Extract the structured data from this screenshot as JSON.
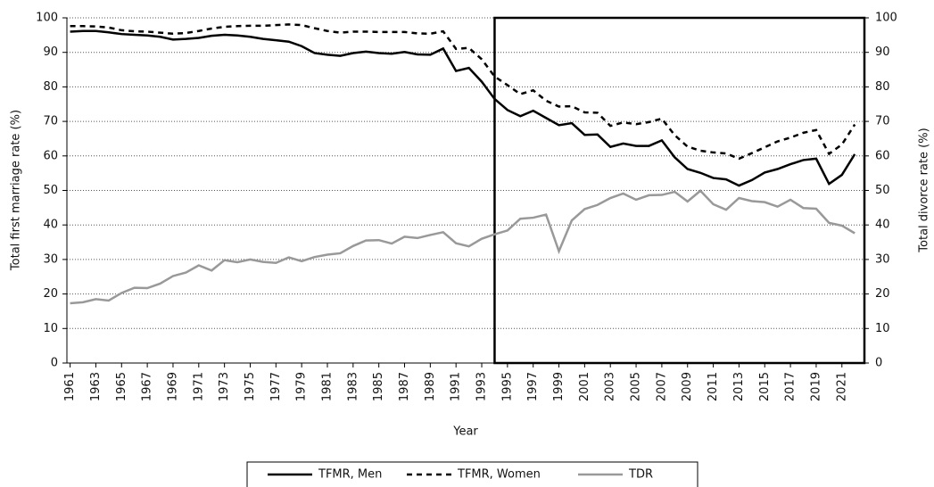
{
  "chart_data": {
    "type": "line",
    "x_label": "Year",
    "y_label": "Total first marriage rate (%)",
    "y2_label": "Total divorce rate (%)",
    "x": [
      1961,
      1962,
      1963,
      1964,
      1965,
      1966,
      1967,
      1968,
      1969,
      1970,
      1971,
      1972,
      1973,
      1974,
      1975,
      1976,
      1977,
      1978,
      1979,
      1980,
      1981,
      1982,
      1983,
      1984,
      1985,
      1986,
      1987,
      1988,
      1989,
      1990,
      1991,
      1992,
      1993,
      1994,
      1995,
      1996,
      1997,
      1998,
      1999,
      2000,
      2001,
      2002,
      2003,
      2004,
      2005,
      2006,
      2007,
      2008,
      2009,
      2010,
      2011,
      2012,
      2013,
      2014,
      2015,
      2016,
      2017,
      2018,
      2019,
      2020,
      2021,
      2022
    ],
    "series": [
      {
        "name": "TFMR, Men",
        "color": "#000000",
        "dash": false,
        "values": [
          96,
          96.2,
          96.2,
          95.8,
          95.3,
          95.1,
          94.9,
          94.5,
          93.7,
          93.9,
          94.2,
          94.8,
          95.1,
          94.9,
          94.5,
          93.9,
          93.5,
          93.1,
          91.8,
          89.8,
          89.3,
          89,
          89.8,
          90.2,
          89.8,
          89.6,
          90.1,
          89.4,
          89.3,
          91.1,
          84.6,
          85.5,
          81.5,
          76.5,
          73.3,
          71.5,
          73.1,
          71,
          68.9,
          69.5,
          66.1,
          66.2,
          62.6,
          63.6,
          62.9,
          62.9,
          64.5,
          59.6,
          56.2,
          55.1,
          53.6,
          53.2,
          51.4,
          53,
          55.2,
          56.2,
          57.6,
          58.8,
          59.2,
          51.9,
          54.5,
          60.5
        ]
      },
      {
        "name": "TFMR, Women",
        "color": "#000000",
        "dash": true,
        "values": [
          97.6,
          97.6,
          97.5,
          97.2,
          96.4,
          96.1,
          96,
          95.7,
          95.4,
          95.6,
          96.2,
          96.9,
          97.4,
          97.6,
          97.7,
          97.7,
          97.9,
          98.1,
          97.9,
          97,
          96.2,
          95.7,
          96,
          96,
          95.9,
          95.9,
          95.9,
          95.5,
          95.4,
          96.1,
          91,
          91.3,
          88,
          83,
          80.5,
          77.9,
          79,
          76,
          74.3,
          74.4,
          72.6,
          72.5,
          68.7,
          69.7,
          69.2,
          69.8,
          70.8,
          66,
          62.7,
          61.5,
          61,
          60.7,
          59.2,
          60.8,
          62.5,
          64.2,
          65.3,
          66.7,
          67.5,
          60.6,
          63.3,
          69.1
        ]
      },
      {
        "name": "TDR",
        "color": "#999999",
        "dash": false,
        "axis": "y2",
        "values": [
          17.3,
          17.6,
          18.5,
          18.1,
          20.3,
          21.8,
          21.7,
          23,
          25.2,
          26.2,
          28.3,
          26.8,
          29.8,
          29.2,
          30,
          29.3,
          29,
          30.6,
          29.5,
          30.7,
          31.4,
          31.8,
          33.9,
          35.5,
          35.6,
          34.6,
          36.6,
          36.2,
          37.1,
          37.9,
          34.7,
          33.8,
          36,
          37.3,
          38.4,
          41.8,
          42.1,
          43,
          32.4,
          41.3,
          44.6,
          45.8,
          47.8,
          49.1,
          47.3,
          48.6,
          48.7,
          49.6,
          46.8,
          49.9,
          46,
          44.4,
          47.8,
          46.9,
          46.6,
          45.3,
          47.3,
          44.9,
          44.7,
          40.6,
          39.8,
          37.6
        ]
      }
    ],
    "xlim": [
      1960.75,
      2022.75
    ],
    "xticks": [
      1961,
      1963,
      1965,
      1967,
      1969,
      1971,
      1973,
      1975,
      1977,
      1979,
      1981,
      1983,
      1985,
      1987,
      1989,
      1991,
      1993,
      1995,
      1997,
      1999,
      2001,
      2003,
      2005,
      2007,
      2009,
      2011,
      2013,
      2015,
      2017,
      2019,
      2021
    ],
    "ylim": [
      0,
      100
    ],
    "yticks": [
      0,
      10,
      20,
      30,
      40,
      50,
      60,
      70,
      80,
      90,
      100
    ],
    "y2lim": [
      0,
      100
    ],
    "y2ticks": [
      0,
      10,
      20,
      30,
      40,
      50,
      60,
      70,
      80,
      90,
      100
    ],
    "grid": true,
    "highlight_from": 1994,
    "legend": "bottom"
  }
}
